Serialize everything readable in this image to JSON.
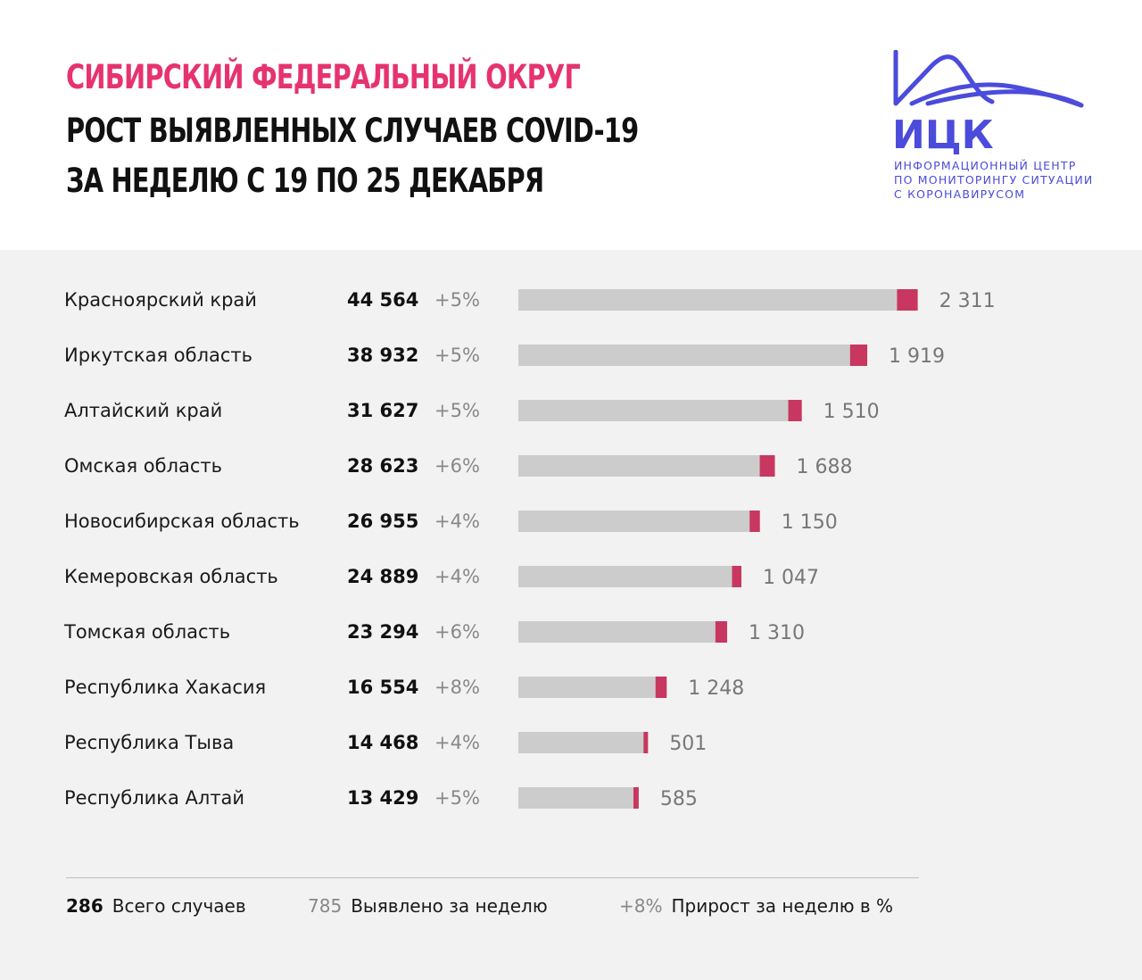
{
  "header": {
    "title_line1": "СИБИРСКИЙ ФЕДЕРАЛЬНЫЙ ОКРУГ",
    "title_line2": "РОСТ ВЫЯВЛЕННЫХ СЛУЧАЕВ COVID-19",
    "title_line3": "ЗА НЕДЕЛЮ С 19 ПО 25 ДЕКАБРЯ"
  },
  "logo": {
    "name": "ИЦК",
    "line1": "ИНФОРМАЦИОННЫЙ ЦЕНТР",
    "line2": "ПО МОНИТОРИНГУ СИТУАЦИИ",
    "line3": "С КОРОНАВИРУСОМ"
  },
  "colors": {
    "title_accent": "#e6336f",
    "title_main": "#111111",
    "logo": "#4b4bdc",
    "bar_total": "#cccccc",
    "bar_weekly": "#c8375f",
    "panel_bg": "#f2f2f2"
  },
  "chart_data": {
    "type": "bar",
    "orientation": "horizontal",
    "stacked": true,
    "categories": [
      "Красноярский край",
      "Иркутская область",
      "Алтайский край",
      "Омская область",
      "Новосибирская область",
      "Кемеровская область",
      "Томская область",
      "Республика Хакасия",
      "Республика Тыва",
      "Республика Алтай"
    ],
    "totals": [
      44564,
      38932,
      31627,
      28623,
      26955,
      24889,
      23294,
      16554,
      14468,
      13429
    ],
    "totals_labels": [
      "44 564",
      "38 932",
      "31 627",
      "28 623",
      "26 955",
      "24 889",
      "23 294",
      "16 554",
      "14 468",
      "13 429"
    ],
    "growth_labels": [
      "+5%",
      "+5%",
      "+5%",
      "+6%",
      "+4%",
      "+4%",
      "+6%",
      "+8%",
      "+4%",
      "+5%"
    ],
    "weekly": [
      2311,
      1919,
      1510,
      1688,
      1150,
      1047,
      1310,
      1248,
      501,
      585
    ],
    "weekly_labels": [
      "2 311",
      "1 919",
      "1 510",
      "1 688",
      "1 150",
      "1 047",
      "1 310",
      "1 248",
      "501",
      "585"
    ],
    "xlim": [
      0,
      45000
    ]
  },
  "legend": {
    "total_value": "286",
    "total_label": "Всего случаев",
    "weekly_value": "785",
    "weekly_label": "Выявлено за неделю",
    "growth_value": "+8%",
    "growth_label": "Прирост за неделю в %"
  }
}
